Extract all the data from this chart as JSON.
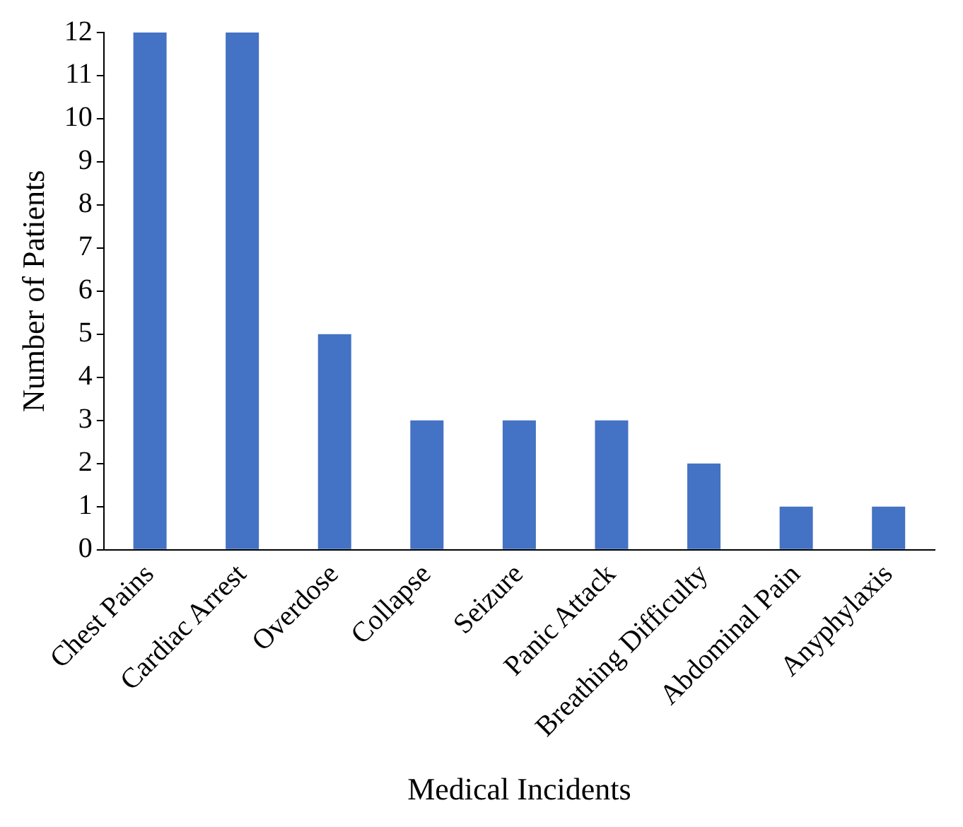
{
  "chart_data": {
    "type": "bar",
    "xlabel": "Medical Incidents",
    "ylabel": "Number of Patients",
    "categories": [
      "Chest Pains",
      "Cardiac Arrest",
      "Overdose",
      "Collapse",
      "Seizure",
      "Panic Attack",
      "Breathing Difficulty",
      "Abdominal Pain",
      "Anyphylaxis"
    ],
    "values": [
      12,
      12,
      5,
      3,
      3,
      3,
      2,
      1,
      1
    ],
    "color": "#4472c4",
    "ylim": [
      0,
      12
    ],
    "yticks": [
      0,
      1,
      2,
      3,
      4,
      5,
      6,
      7,
      8,
      9,
      10,
      11,
      12
    ],
    "grid": false,
    "legend": false
  }
}
